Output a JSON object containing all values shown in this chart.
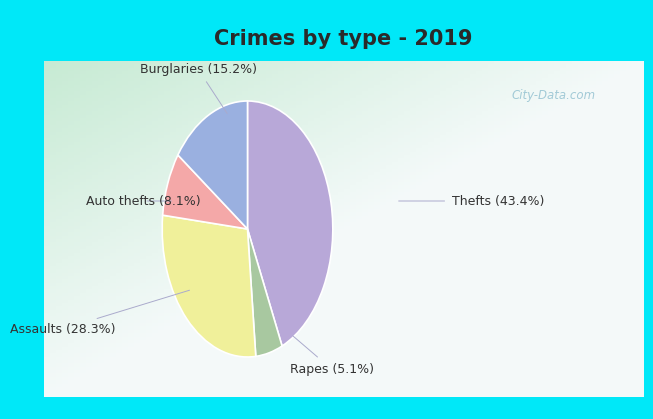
{
  "title": "Crimes by type - 2019",
  "labels": [
    "Thefts",
    "Rapes",
    "Assaults",
    "Auto thefts",
    "Burglaries"
  ],
  "values": [
    43.4,
    5.1,
    28.3,
    8.1,
    15.2
  ],
  "colors": [
    "#b8a8d8",
    "#a8c8a0",
    "#f0f09a",
    "#f4a8a8",
    "#9ab0e0"
  ],
  "label_texts": [
    "Thefts (43.4%)",
    "Rapes (5.1%)",
    "Assaults (28.3%)",
    "Auto thefts (8.1%)",
    "Burglaries (15.2%)"
  ],
  "bg_cyan": "#00e8f8",
  "bg_green_light": "#c8e8d0",
  "bg_white": "#e8f8f0",
  "title_fontsize": 15,
  "label_fontsize": 9,
  "watermark": "City-Data.com"
}
